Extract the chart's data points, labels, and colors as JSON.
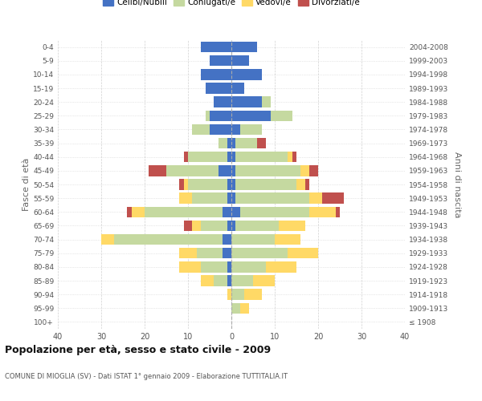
{
  "age_groups": [
    "100+",
    "95-99",
    "90-94",
    "85-89",
    "80-84",
    "75-79",
    "70-74",
    "65-69",
    "60-64",
    "55-59",
    "50-54",
    "45-49",
    "40-44",
    "35-39",
    "30-34",
    "25-29",
    "20-24",
    "15-19",
    "10-14",
    "5-9",
    "0-4"
  ],
  "birth_years": [
    "≤ 1908",
    "1909-1913",
    "1914-1918",
    "1919-1923",
    "1924-1928",
    "1929-1933",
    "1934-1938",
    "1939-1943",
    "1944-1948",
    "1949-1953",
    "1954-1958",
    "1959-1963",
    "1964-1968",
    "1969-1973",
    "1974-1978",
    "1979-1983",
    "1984-1988",
    "1989-1993",
    "1994-1998",
    "1999-2003",
    "2004-2008"
  ],
  "colors": {
    "celibi": "#4472c4",
    "coniugati": "#c5d9a0",
    "vedovi": "#ffd966",
    "divorziati": "#c0504d"
  },
  "males": {
    "celibi": [
      0,
      0,
      0,
      1,
      1,
      2,
      2,
      1,
      2,
      1,
      1,
      3,
      1,
      1,
      5,
      5,
      4,
      6,
      7,
      5,
      7
    ],
    "coniugati": [
      0,
      0,
      0,
      3,
      6,
      6,
      25,
      6,
      18,
      8,
      9,
      12,
      9,
      2,
      4,
      1,
      0,
      0,
      0,
      0,
      0
    ],
    "vedovi": [
      0,
      0,
      1,
      3,
      5,
      4,
      3,
      2,
      3,
      3,
      1,
      0,
      0,
      0,
      0,
      0,
      0,
      0,
      0,
      0,
      0
    ],
    "divorziati": [
      0,
      0,
      0,
      0,
      0,
      0,
      0,
      2,
      1,
      0,
      1,
      4,
      1,
      0,
      0,
      0,
      0,
      0,
      0,
      0,
      0
    ]
  },
  "females": {
    "celibi": [
      0,
      0,
      0,
      0,
      0,
      0,
      0,
      1,
      2,
      1,
      1,
      1,
      1,
      1,
      2,
      9,
      7,
      3,
      7,
      4,
      6
    ],
    "coniugati": [
      0,
      2,
      3,
      5,
      8,
      13,
      10,
      10,
      16,
      17,
      14,
      15,
      12,
      5,
      5,
      5,
      2,
      0,
      0,
      0,
      0
    ],
    "vedovi": [
      0,
      2,
      4,
      5,
      7,
      7,
      6,
      6,
      6,
      3,
      2,
      2,
      1,
      0,
      0,
      0,
      0,
      0,
      0,
      0,
      0
    ],
    "divorziati": [
      0,
      0,
      0,
      0,
      0,
      0,
      0,
      0,
      1,
      5,
      1,
      2,
      1,
      2,
      0,
      0,
      0,
      0,
      0,
      0,
      0
    ]
  },
  "title": "Popolazione per età, sesso e stato civile - 2009",
  "subtitle": "COMUNE DI MIOGLIA (SV) - Dati ISTAT 1° gennaio 2009 - Elaborazione TUTTITALIA.IT",
  "ylabel_left": "Fasce di età",
  "ylabel_right": "Anni di nascita",
  "xlim": 40,
  "legend_labels": [
    "Celibi/Nubili",
    "Coniugati/e",
    "Vedovi/e",
    "Divorziati/e"
  ],
  "background_color": "#ffffff",
  "grid_color": "#cccccc"
}
